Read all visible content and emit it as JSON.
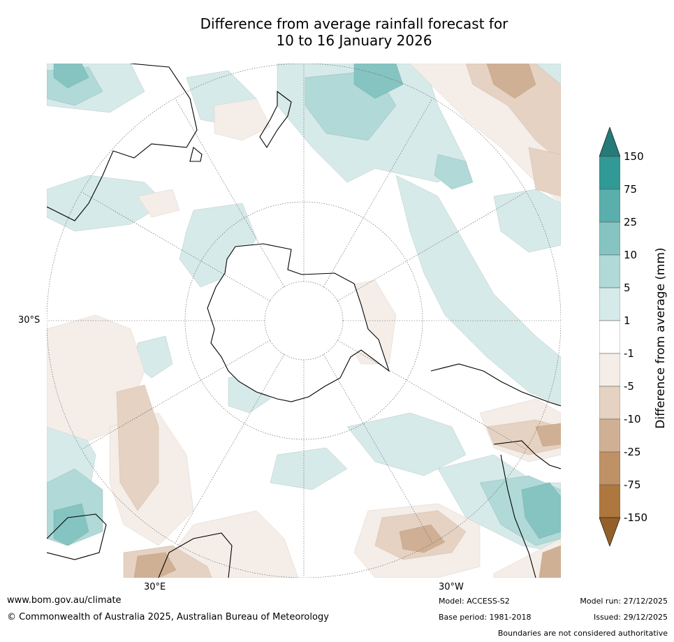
{
  "title": {
    "line1": "Difference from average rainfall forecast for",
    "line2": "10 to 16 January 2026"
  },
  "map": {
    "projection": "south polar stereographic",
    "lat_label": "30°S",
    "lon_label_left": "30°E",
    "lon_label_right": "30°W"
  },
  "colorbar": {
    "label": "Difference from average (mm)",
    "ticks": [
      "150",
      "75",
      "25",
      "10",
      "5",
      "1",
      "-1",
      "-5",
      "-10",
      "-25",
      "-75",
      "-150"
    ],
    "colors": {
      "over": "#267a78",
      "c150_75": "#319996",
      "c75_25": "#5aaeab",
      "c25_10": "#85c4c1",
      "c10_5": "#b0d9d7",
      "c5_1": "#d6eae9",
      "c1_m1": "#ffffff",
      "cm1_m5": "#f4ede8",
      "cm5_m10": "#e5d2c2",
      "cm10_m25": "#d0b094",
      "cm25_m75": "#bf9166",
      "cm75_m150": "#ad773d",
      "under": "#93602a"
    }
  },
  "footer": {
    "url": "www.bom.gov.au/climate",
    "copyright": "© Commonwealth of Australia 2025, Australian Bureau of Meteorology",
    "model": "Model: ACCESS-S2",
    "base_period": "Base period: 1981-2018",
    "model_run": "Model run: 27/12/2025",
    "issued": "Issued: 29/12/2025",
    "disclaimer": "Boundaries are not considered authoritative"
  }
}
